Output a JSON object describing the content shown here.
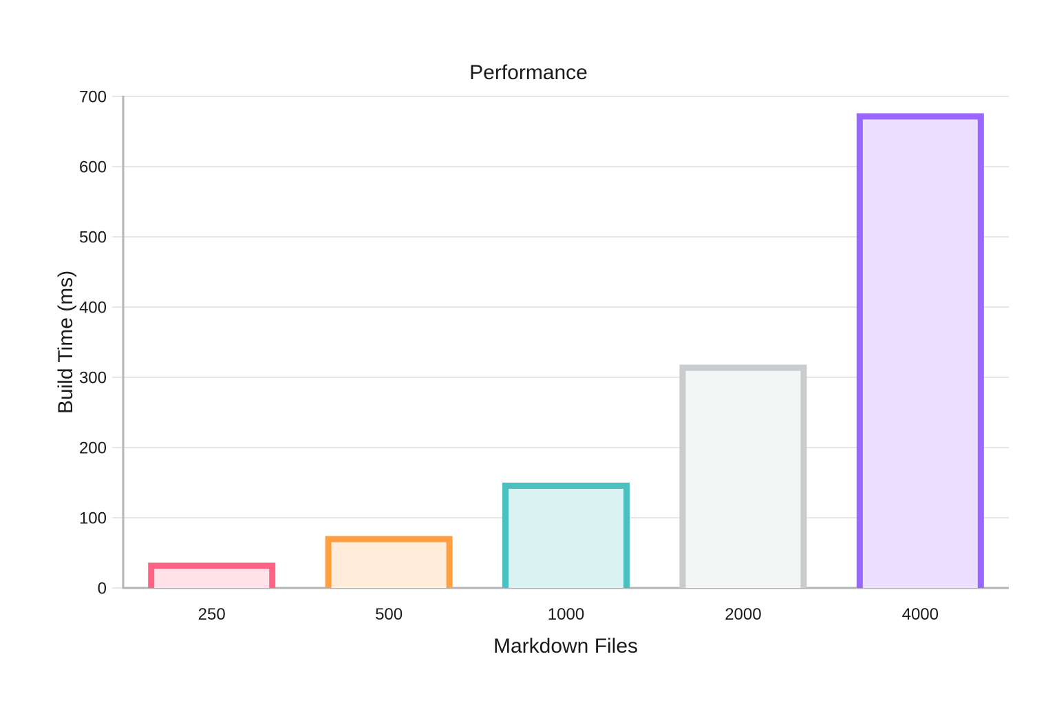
{
  "chart_data": {
    "type": "bar",
    "title": "Performance",
    "xlabel": "Markdown Files",
    "ylabel": "Build Time (ms)",
    "categories": [
      "250",
      "500",
      "1000",
      "2000",
      "4000"
    ],
    "values": [
      36,
      74,
      150,
      318,
      676
    ],
    "ylim": [
      0,
      700
    ],
    "ytick_step": 100,
    "yticks": [
      0,
      100,
      200,
      300,
      400,
      500,
      600,
      700
    ],
    "grid": true,
    "legend": "none",
    "bar_styles": [
      {
        "border": "#FF6384",
        "fill": "#FFE1E8"
      },
      {
        "border": "#FF9F40",
        "fill": "#FFECD9"
      },
      {
        "border": "#4BC0C0",
        "fill": "#DBF2F2"
      },
      {
        "border": "#C9CBCF",
        "fill": "#F4F5F5"
      },
      {
        "border": "#9966FF",
        "fill": "#EBE0FF"
      }
    ],
    "colors": {
      "grid": "#E7E7E9",
      "axis": "#B5B5B8",
      "text": "#1B1B1D",
      "background": "#FFFFFF"
    }
  }
}
